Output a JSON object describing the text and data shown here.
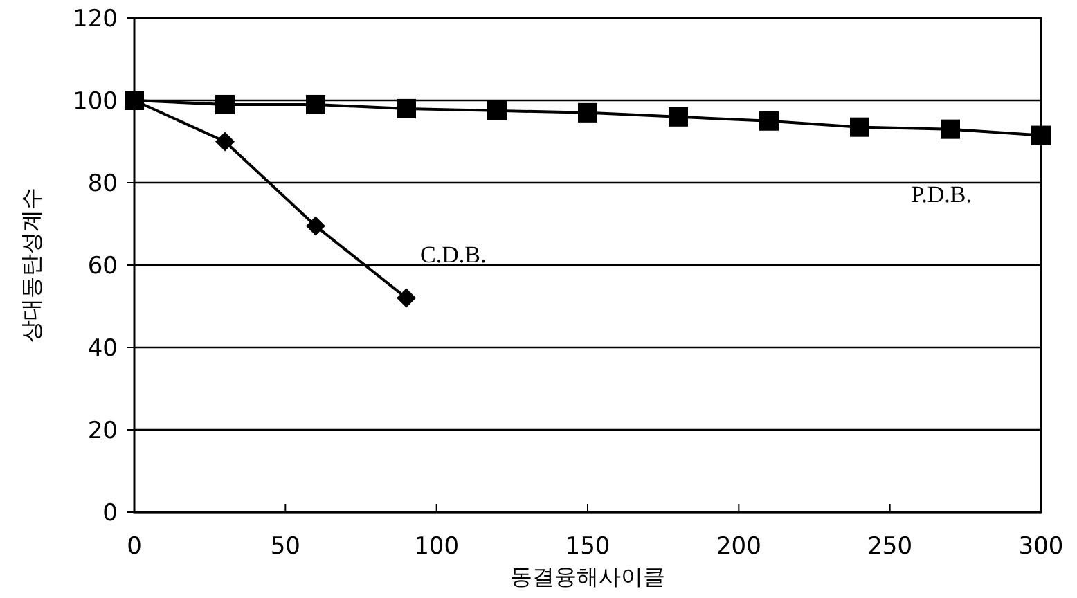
{
  "chart_data": {
    "type": "line",
    "xlabel": "동결융해사이클",
    "ylabel": "상대동탄성계수",
    "xlim": [
      0,
      300
    ],
    "xticks": [
      0,
      50,
      100,
      150,
      200,
      250,
      300
    ],
    "ylim": [
      0,
      120
    ],
    "yticks": [
      0,
      20,
      40,
      60,
      80,
      100,
      120
    ],
    "grid": "y",
    "series": [
      {
        "name": "P.D.B.",
        "color": "#000000",
        "marker": "square",
        "x": [
          0,
          30,
          60,
          90,
          120,
          150,
          180,
          210,
          240,
          270,
          300
        ],
        "values": [
          100,
          99,
          99,
          98,
          97.5,
          97,
          96,
          95,
          93.5,
          93,
          91.5
        ]
      },
      {
        "name": "C.D.B.",
        "color": "#000000",
        "marker": "diamond",
        "x": [
          0,
          30,
          60,
          90
        ],
        "values": [
          100,
          90,
          69.5,
          52
        ]
      }
    ]
  }
}
